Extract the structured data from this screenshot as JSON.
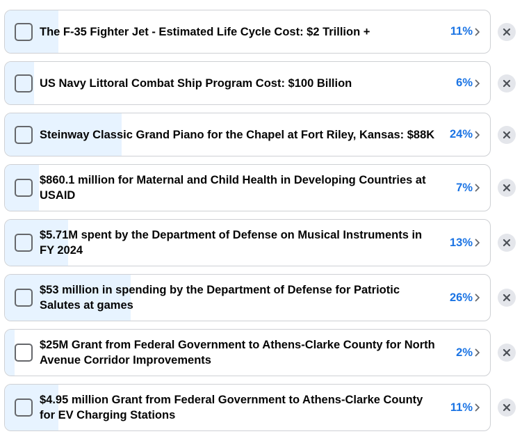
{
  "poll": {
    "options": [
      {
        "text": "The F-35 Fighter Jet - Estimated Life Cycle Cost: $2 Trillion +",
        "percent": {
          "value": 11,
          "label": "11%"
        }
      },
      {
        "text": "US Navy Littoral Combat Ship Program Cost: $100 Billion",
        "percent": {
          "value": 6,
          "label": "6%"
        }
      },
      {
        "text": "Steinway Classic Grand Piano for the Chapel at Fort Riley, Kansas: $88K",
        "percent": {
          "value": 24,
          "label": "24%"
        }
      },
      {
        "text": "$860.1 million for Maternal and Child Health in Developing Countries at USAID",
        "percent": {
          "value": 7,
          "label": "7%"
        }
      },
      {
        "text": "$5.71M spent by the Department of Defense on Musical Instruments in FY 2024",
        "percent": {
          "value": 13,
          "label": "13%"
        }
      },
      {
        "text": "$53 million in spending by the Department of Defense for Patriotic Salutes at games",
        "percent": {
          "value": 26,
          "label": "26%"
        }
      },
      {
        "text": "$25M Grant from Federal Government to Athens-Clarke County for North Avenue Corridor Improvements",
        "percent": {
          "value": 2,
          "label": "2%"
        }
      },
      {
        "text": "$4.95 million Grant from Federal Government to Athens-Clarke County for EV Charging Stations",
        "percent": {
          "value": 11,
          "label": "11%"
        }
      }
    ]
  }
}
